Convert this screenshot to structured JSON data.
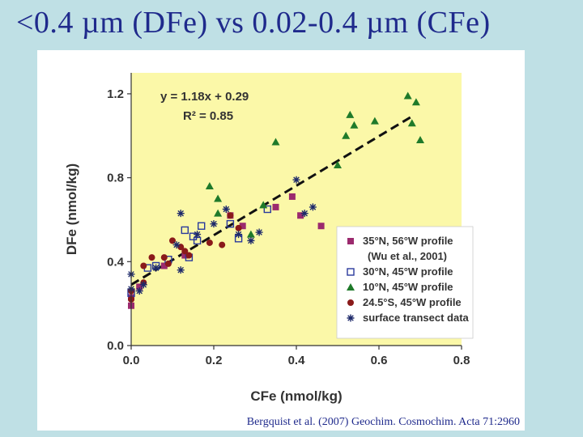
{
  "slide": {
    "title": "<0.4 µm (DFe) vs 0.02-0.4 µm (CFe)",
    "citation": "Bergquist et al. (2007) Geochim. Cosmochim. Acta 71:2960"
  },
  "chart_data": {
    "type": "scatter",
    "title": "",
    "xlabel": "CFe (nmol/kg)",
    "ylabel": "DFe (nmol/kg)",
    "xlim": [
      0,
      0.8
    ],
    "ylim": [
      0,
      1.3
    ],
    "xticks": [
      0.0,
      0.2,
      0.4,
      0.6,
      0.8
    ],
    "xtick_labels": [
      "0.0",
      "0.2",
      "0.4",
      "0.6",
      "0.8"
    ],
    "yticks": [
      0.0,
      0.4,
      0.8,
      1.2
    ],
    "ytick_labels": [
      "0.0",
      "0.4",
      "0.8",
      "1.2"
    ],
    "plot_background": "#fbf8a8",
    "legend_position": "bottom-right",
    "annotations": {
      "equation": "y = 1.18x + 0.29",
      "r_squared": "R² = 0.85"
    },
    "fit_line": {
      "slope": 1.18,
      "intercept": 0.29,
      "x_range": [
        0,
        0.68
      ],
      "style": "dashed",
      "color": "#111111"
    },
    "series": [
      {
        "name": "35°N, 56°W profile",
        "name_line2": "(Wu et al., 2001)",
        "marker": "square-filled",
        "color": "#9b2a6e",
        "points": [
          [
            0.0,
            0.19
          ],
          [
            0.0,
            0.23
          ],
          [
            0.02,
            0.28
          ],
          [
            0.08,
            0.38
          ],
          [
            0.13,
            0.43
          ],
          [
            0.24,
            0.62
          ],
          [
            0.27,
            0.57
          ],
          [
            0.35,
            0.66
          ],
          [
            0.39,
            0.71
          ],
          [
            0.41,
            0.62
          ],
          [
            0.46,
            0.57
          ]
        ]
      },
      {
        "name": "30°N, 45°W profile",
        "marker": "square-open",
        "color": "#2a3a9c",
        "points": [
          [
            0.0,
            0.25
          ],
          [
            0.04,
            0.37
          ],
          [
            0.06,
            0.38
          ],
          [
            0.09,
            0.41
          ],
          [
            0.13,
            0.55
          ],
          [
            0.14,
            0.42
          ],
          [
            0.15,
            0.52
          ],
          [
            0.16,
            0.5
          ],
          [
            0.17,
            0.57
          ],
          [
            0.24,
            0.58
          ],
          [
            0.26,
            0.51
          ],
          [
            0.33,
            0.65
          ]
        ]
      },
      {
        "name": "10°N, 45°W profile",
        "marker": "triangle-filled",
        "color": "#1f7a2a",
        "points": [
          [
            0.19,
            0.76
          ],
          [
            0.21,
            0.7
          ],
          [
            0.21,
            0.63
          ],
          [
            0.29,
            0.53
          ],
          [
            0.32,
            0.67
          ],
          [
            0.35,
            0.97
          ],
          [
            0.5,
            0.86
          ],
          [
            0.52,
            1.0
          ],
          [
            0.53,
            1.1
          ],
          [
            0.54,
            1.05
          ],
          [
            0.59,
            1.07
          ],
          [
            0.67,
            1.19
          ],
          [
            0.68,
            1.06
          ],
          [
            0.69,
            1.16
          ],
          [
            0.7,
            0.98
          ]
        ]
      },
      {
        "name": "24.5°S, 45°W profile",
        "marker": "circle-filled",
        "color": "#8a1a1a",
        "points": [
          [
            0.0,
            0.22
          ],
          [
            0.0,
            0.26
          ],
          [
            0.03,
            0.3
          ],
          [
            0.03,
            0.38
          ],
          [
            0.05,
            0.42
          ],
          [
            0.08,
            0.42
          ],
          [
            0.09,
            0.39
          ],
          [
            0.1,
            0.5
          ],
          [
            0.12,
            0.47
          ],
          [
            0.13,
            0.45
          ],
          [
            0.14,
            0.43
          ],
          [
            0.19,
            0.49
          ],
          [
            0.22,
            0.48
          ],
          [
            0.24,
            0.62
          ],
          [
            0.26,
            0.56
          ]
        ]
      },
      {
        "name": "surface transect data",
        "marker": "asterisk",
        "color": "#1e2a6a",
        "points": [
          [
            0.0,
            0.34
          ],
          [
            0.0,
            0.27
          ],
          [
            0.02,
            0.26
          ],
          [
            0.03,
            0.29
          ],
          [
            0.06,
            0.37
          ],
          [
            0.11,
            0.48
          ],
          [
            0.12,
            0.36
          ],
          [
            0.12,
            0.63
          ],
          [
            0.16,
            0.53
          ],
          [
            0.2,
            0.58
          ],
          [
            0.23,
            0.65
          ],
          [
            0.26,
            0.53
          ],
          [
            0.29,
            0.5
          ],
          [
            0.31,
            0.54
          ],
          [
            0.4,
            0.79
          ],
          [
            0.42,
            0.63
          ],
          [
            0.44,
            0.66
          ]
        ]
      }
    ]
  }
}
